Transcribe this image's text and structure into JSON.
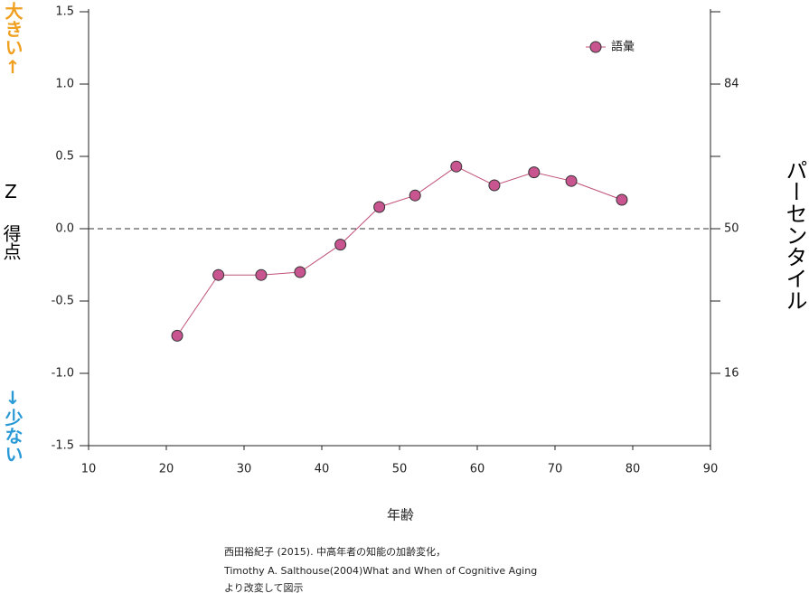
{
  "chart_data": {
    "type": "line",
    "x_label": "年齢",
    "y_label": "Z 得点",
    "y_top_label": "大きい↑",
    "y_bottom_label": "↓少ない",
    "y2_label": "パーセンタイル",
    "series": [
      {
        "name": "語彙",
        "color": "#c8558f",
        "line_color": "#c0507a",
        "x": [
          21.4,
          26.7,
          32.2,
          37.2,
          42.4,
          47.4,
          52.0,
          57.3,
          62.2,
          67.3,
          72.1,
          78.6
        ],
        "values": [
          -0.74,
          -0.32,
          -0.32,
          -0.3,
          -0.11,
          0.15,
          0.23,
          0.43,
          0.3,
          0.39,
          0.33,
          0.2
        ]
      }
    ],
    "xlim": [
      10,
      90
    ],
    "xticks": [
      10,
      20,
      30,
      40,
      50,
      60,
      70,
      80,
      90
    ],
    "ylim": [
      -1.5,
      1.5
    ],
    "yticks": [
      1.5,
      {
        "value": 1.0,
        "label": "1.0"
      },
      0.5,
      {
        "value": 0.0,
        "label": "0.0"
      },
      -0.5,
      {
        "value": -1.0,
        "label": "-1.0"
      },
      -1.5
    ],
    "y2lim": [
      -1.5,
      1.5
    ],
    "y2ticks": [
      {
        "value": 1.0,
        "label": "84"
      },
      {
        "value": 0.0,
        "label": "50"
      },
      {
        "value": -1.0,
        "label": "16"
      }
    ],
    "y2ticks_minor": [
      1.5,
      0.5,
      -0.5
    ],
    "reference_line": 0,
    "legend": "top-right",
    "grid": false,
    "caption": [
      "西田裕紀子 (2015). 中高年者の知能の加齢変化，",
      "Timothy A. Salthouse(2004)What and When of Cognitive Aging",
      "より改変して図示"
    ]
  }
}
